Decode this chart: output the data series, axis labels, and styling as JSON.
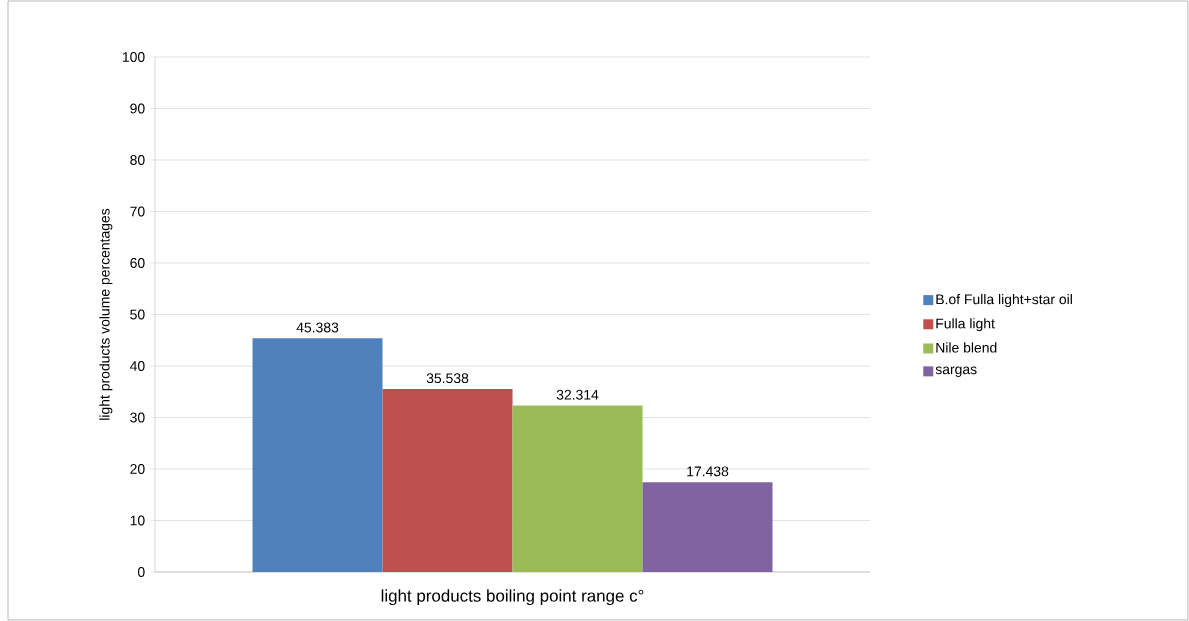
{
  "chart_data": {
    "type": "bar",
    "xlabel": "light products boiling point range c°",
    "ylabel": "light  products  volume  percentages",
    "categories": [
      null
    ],
    "series": [
      {
        "name": "B.of Fulla light+star oil",
        "color": "#4f81bd",
        "values": [
          45.383
        ]
      },
      {
        "name": "Fulla light",
        "color": "#c0504d",
        "values": [
          35.538
        ]
      },
      {
        "name": "Nile blend",
        "color": "#9bbb59",
        "values": [
          32.314
        ]
      },
      {
        "name": "sargas",
        "color": "#8064a2",
        "values": [
          17.438
        ]
      }
    ],
    "ylim": [
      0,
      100
    ],
    "yticks": [
      0,
      10,
      20,
      30,
      40,
      50,
      60,
      70,
      80,
      90,
      100
    ],
    "grid": "y",
    "legend": "right",
    "data_labels": true
  }
}
